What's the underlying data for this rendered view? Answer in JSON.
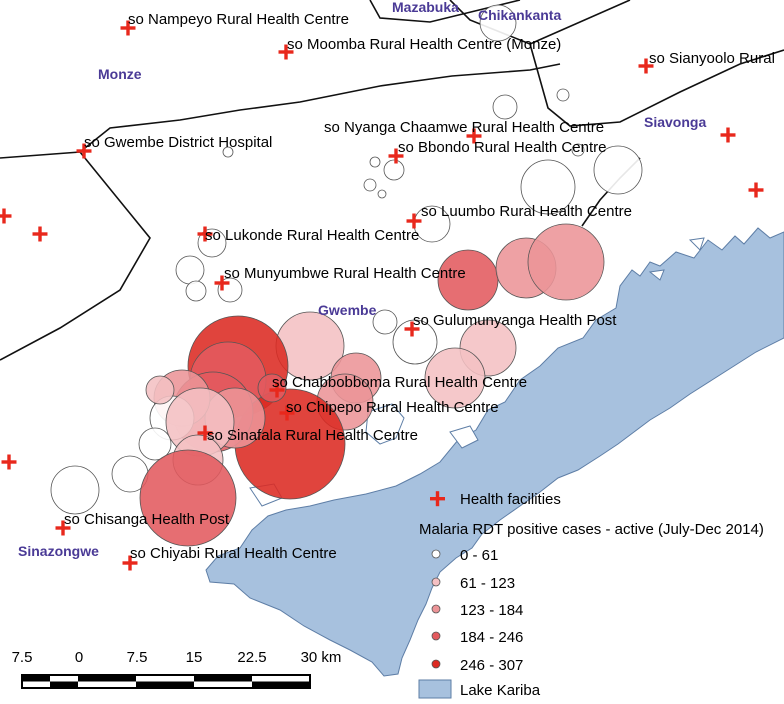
{
  "colors": {
    "lake": "#a7c1de",
    "lake_stroke": "#5e7ea6",
    "facility": "#e8281c",
    "district_label": "#4a3a96",
    "classes": [
      "#ffffff",
      "#f4c0c3",
      "#ec9497",
      "#e35a5e",
      "#dc2a22"
    ]
  },
  "districts": {
    "monze": "Monze",
    "mazabuka": "Mazabuka",
    "chikankanta": "Chikankanta",
    "siavonga": "Siavonga",
    "gwembe": "Gwembe",
    "sinazongwe": "Sinazongwe"
  },
  "facilities": {
    "nampeyo": "so Nampeyo Rural Health Centre",
    "moomba": "so Moomba Rural Health Centre (Monze)",
    "sianyoolo": "so Sianyoolo Rural",
    "gwembe_dh": "so Gwembe District Hospital",
    "nyanga": "so Nyanga Chaamwe Rural Health Centre",
    "bbondo": "so Bbondo Rural Health Centre",
    "luumbo": "so Luumbo Rural Health Centre",
    "lukonde": "so Lukonde Rural Health Centre",
    "munyumbwe": "so Munyumbwe Rural Health Centre",
    "gulumunyanga": "so Gulumunyanga Health Post",
    "chabbobboma": "so Chabbobboma Rural Health Centre",
    "chipepo": "so Chipepo Rural Health Centre",
    "sinafala": "so Sinafala Rural Health Centre",
    "chisanga": "so Chisanga Health Post",
    "chiyabi": "so Chiyabi Rural Health Centre"
  },
  "legend": {
    "facilities_label": "Health facilities",
    "cases_title": "Malaria RDT positive cases - active (July-Dec 2014)",
    "classes": [
      "0 - 61",
      "61 - 123",
      "123 - 184",
      "184 - 246",
      "246 - 307"
    ],
    "lake_label": "Lake Kariba"
  },
  "scalebar": {
    "ticks": [
      "7.5",
      "0",
      "7.5",
      "15",
      "22.5",
      "30 km"
    ]
  }
}
